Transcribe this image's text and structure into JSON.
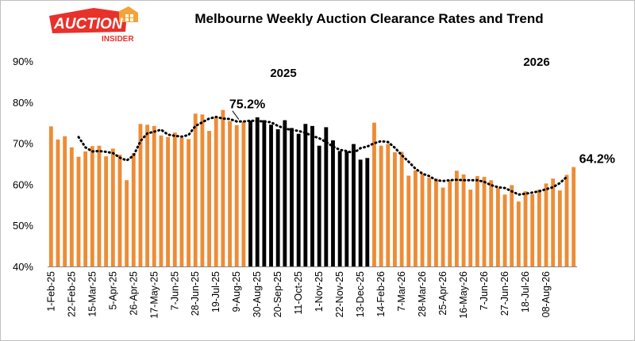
{
  "logo": {
    "word": "AUCTION",
    "sub": "INSIDER"
  },
  "colors": {
    "orange": "#ED8C36",
    "black": "#000000",
    "trend": "#000000",
    "logo_red": "#E8312A"
  },
  "chart_data": {
    "type": "bar",
    "title": "Melbourne Weekly Auction Clearance Rates and Trend",
    "xlabel": "",
    "ylabel": "",
    "ylim": [
      40,
      90
    ],
    "yticks": [
      "40%",
      "50%",
      "60%",
      "70%",
      "80%",
      "90%"
    ],
    "grid": false,
    "x_tick_labels": [
      "1-Feb-25",
      "22-Feb-25",
      "15-Mar-25",
      "5-Apr-25",
      "26-Apr-25",
      "17-May-25",
      "7-Jun-25",
      "28-Jun-25",
      "19-Jul-25",
      "9-Aug-25",
      "30-Aug-25",
      "20-Sep-25",
      "11-Oct-25",
      "1-Nov-25",
      "22-Nov-25",
      "13-Dec-25",
      "14-Feb-26",
      "7-Mar-26",
      "28-Mar-26",
      "25-Apr-26",
      "16-May-26",
      "7-Jun-26",
      "27-Jun-26",
      "18-Jul-26",
      "08-Aug-26"
    ],
    "series": [
      {
        "values": [
          74.1,
          70.9,
          71.7,
          69,
          66.7,
          68,
          69.3,
          69.4,
          66.8,
          68.7,
          67.2,
          61,
          67.6,
          74.7,
          74.5,
          74.2,
          71.9,
          71.5,
          72.6,
          71.3,
          71,
          77.2,
          77,
          73,
          76.3,
          78.1,
          75.4,
          74.4,
          75.2,
          75.5,
          76.3,
          75.6,
          74.5,
          73.4,
          75.6,
          73.7,
          72.3,
          74.7,
          74.2,
          69.4,
          73.9,
          70.7,
          68.1,
          68,
          69.8,
          66,
          66.4,
          75,
          69.4,
          69.8,
          67.8,
          67.9,
          62.1,
          63.4,
          62.5,
          61.6,
          61.4,
          59.2,
          61,
          63.3,
          62.4,
          58.7,
          62,
          61.8,
          61,
          59.1,
          57.5,
          59.8,
          55.8,
          58.3,
          57.6,
          58.7,
          60.2,
          61.4,
          58.5,
          62.3,
          64.2
        ],
        "colors": [
          "orange",
          "orange",
          "orange",
          "orange",
          "orange",
          "orange",
          "orange",
          "orange",
          "orange",
          "orange",
          "orange",
          "orange",
          "orange",
          "orange",
          "orange",
          "orange",
          "orange",
          "orange",
          "orange",
          "orange",
          "orange",
          "orange",
          "orange",
          "orange",
          "orange",
          "orange",
          "orange",
          "orange",
          "orange",
          "black",
          "black",
          "black",
          "black",
          "black",
          "black",
          "black",
          "black",
          "black",
          "black",
          "black",
          "black",
          "black",
          "black",
          "black",
          "black",
          "black",
          "black",
          "orange",
          "orange",
          "orange",
          "orange",
          "orange",
          "orange",
          "orange",
          "orange",
          "orange",
          "orange",
          "orange",
          "orange",
          "orange",
          "orange",
          "orange",
          "orange",
          "orange",
          "orange",
          "orange",
          "orange",
          "orange",
          "orange",
          "orange",
          "orange",
          "orange",
          "orange",
          "orange",
          "orange",
          "orange",
          "orange"
        ]
      }
    ],
    "trend": {
      "start_index": 4,
      "values": [
        71.5,
        69,
        68,
        68.1,
        67.9,
        67.6,
        66.5,
        65.8,
        67,
        70.5,
        72.4,
        72.8,
        73.3,
        72.1,
        71.8,
        71.6,
        72,
        74.2,
        75.1,
        76,
        76.4,
        76,
        75.9,
        75.3,
        75.3,
        75.5,
        75.4,
        75.3,
        75.1,
        74.2,
        73.6,
        73.2,
        73,
        72.5,
        71.8,
        71.2,
        70.3,
        69.2,
        68.4,
        68.1,
        67.6,
        68.8,
        69.2,
        70,
        70.5,
        70.3,
        68.9,
        67.1,
        65.5,
        63.8,
        62.6,
        62,
        61,
        60.8,
        61,
        61.1,
        61,
        61,
        61,
        60.6,
        59.8,
        59.3,
        59.1,
        58.3,
        57.5,
        57.7,
        58,
        58.3,
        58.8,
        59.3,
        60.3,
        61.8
      ]
    },
    "annotations": [
      {
        "text": "2025",
        "role": "year"
      },
      {
        "text": "2026",
        "role": "year"
      },
      {
        "text": "75.2%",
        "index": 28,
        "role": "value"
      },
      {
        "text": "64.2%",
        "index": 76,
        "role": "value"
      }
    ]
  }
}
